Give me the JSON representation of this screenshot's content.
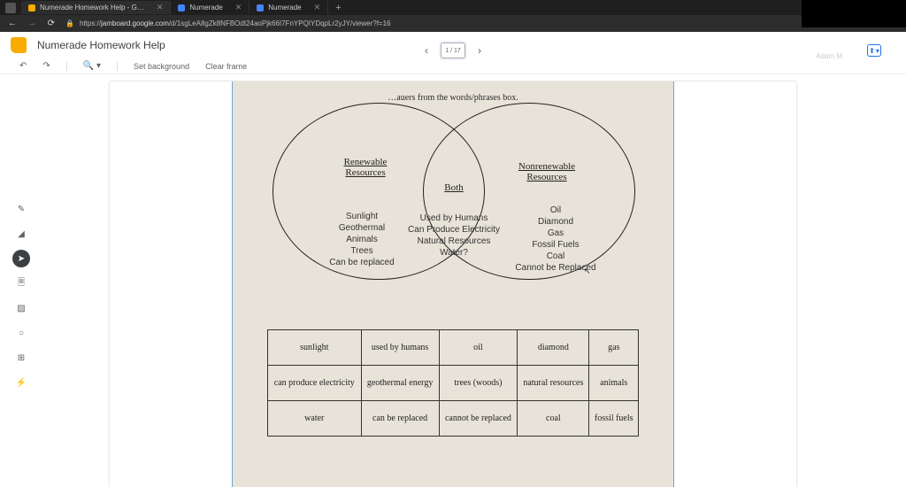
{
  "browser": {
    "tabs": [
      {
        "title": "Numerade Homework Help - G…",
        "favicon": "fi-jb",
        "active": true
      },
      {
        "title": "Numerade",
        "favicon": "fi-nu",
        "active": false
      },
      {
        "title": "Numerade",
        "favicon": "fi-nu",
        "active": false
      }
    ],
    "url_domain": "jamboard.google.com",
    "url_path": "/d/1sgLeA8gZk8NFBOdt24aoPjk66I7FnYPQIYDqpLr2yJY/viewer?f=16"
  },
  "user": "Adam M",
  "doc": {
    "title": "Numerade Homework Help"
  },
  "frameNav": {
    "indicator": "1 / 17"
  },
  "toolbar": {
    "setbg": "Set background",
    "clear": "Clear frame"
  },
  "venn": {
    "top_text": "…auers from the words/phrases box.",
    "left_hdr": "Renewable<br>Resources",
    "right_hdr": "Nonrenewable<br>Resources",
    "mid_hdr": "Both",
    "left_items": [
      "Sunlight",
      "Geothermal",
      "Animals",
      "Trees",
      "Can be replaced"
    ],
    "mid_items": [
      "Used by Humans",
      "Can Produce Electricity",
      "Natural Resources",
      "Water?"
    ],
    "right_items": [
      "Oil",
      "Diamond",
      "Gas",
      "Fossil Fuels",
      "Coal",
      "Cannot be Replaced"
    ]
  },
  "table": {
    "rows": [
      [
        "sunlight",
        "used by humans",
        "oil",
        "diamond",
        "gas"
      ],
      [
        "can produce electricity",
        "geothermal energy",
        "trees (woods)",
        "natural resources",
        "animals"
      ],
      [
        "water",
        "can be replaced",
        "cannot be replaced",
        "coal",
        "fossil fuels"
      ]
    ]
  }
}
